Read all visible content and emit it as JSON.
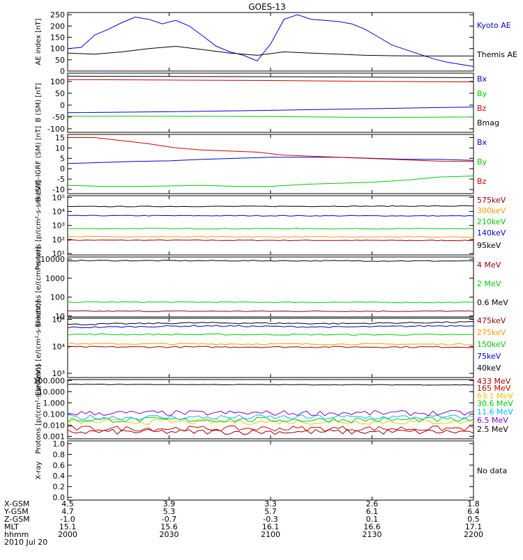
{
  "title": "GOES-13",
  "colors": {
    "black": "#000000",
    "blue": "#0000dd",
    "red": "#cc0000",
    "green": "#00cc00",
    "orange": "#ff9900",
    "yellow": "#e6c800",
    "cyan": "#00bbff",
    "purple": "#8800cc",
    "darkred": "#990000"
  },
  "chart_data": [
    {
      "type": "line",
      "panel": "ae-index",
      "ylabel": "AE index [nT]",
      "ytick_labels": [
        "0",
        "50",
        "100",
        "150",
        "200",
        "250"
      ],
      "ytick_values": [
        0,
        50,
        100,
        150,
        200,
        250
      ],
      "ylim": [
        0,
        260
      ],
      "log": false,
      "series": [
        {
          "name": "Kyoto AE",
          "color": "blue",
          "x": [
            0,
            2,
            4,
            6,
            8,
            10,
            12,
            14,
            16,
            18,
            20,
            22,
            24,
            26,
            28,
            30,
            32,
            34,
            36,
            38,
            40,
            42,
            44,
            46,
            48,
            50,
            52,
            54,
            56,
            58,
            60
          ],
          "y": [
            100,
            105,
            160,
            185,
            215,
            240,
            230,
            210,
            225,
            200,
            155,
            110,
            85,
            70,
            45,
            120,
            230,
            250,
            230,
            225,
            220,
            210,
            185,
            150,
            115,
            95,
            75,
            55,
            40,
            30,
            20
          ]
        },
        {
          "name": "Themis AE",
          "color": "black",
          "x": [
            0,
            4,
            8,
            12,
            16,
            20,
            24,
            28,
            32,
            36,
            40,
            44,
            48,
            52,
            56,
            60
          ],
          "y": [
            80,
            75,
            85,
            100,
            110,
            95,
            80,
            70,
            85,
            80,
            75,
            70,
            68,
            67,
            67,
            67
          ]
        }
      ]
    },
    {
      "type": "line",
      "panel": "b-sm",
      "ylabel": "B (SM) [nT]",
      "ytick_labels": [
        "-100",
        "-50",
        "0",
        "50",
        "100"
      ],
      "ytick_values": [
        -100,
        -50,
        0,
        50,
        100
      ],
      "ylim": [
        -115,
        135
      ],
      "log": false,
      "series": [
        {
          "name": "Bx",
          "color": "blue",
          "x": [
            0,
            15,
            30,
            45,
            60
          ],
          "y": [
            -32,
            -28,
            -22,
            -15,
            -8
          ]
        },
        {
          "name": "By",
          "color": "green",
          "x": [
            0,
            15,
            30,
            45,
            60
          ],
          "y": [
            -47,
            -47,
            -48,
            -52,
            -50
          ]
        },
        {
          "name": "Bz",
          "color": "red",
          "x": [
            0,
            15,
            30,
            45,
            60
          ],
          "y": [
            108,
            106,
            104,
            100,
            98
          ]
        },
        {
          "name": "Bmag",
          "color": "black",
          "x": [
            0,
            15,
            30,
            45,
            60
          ],
          "y": [
            122,
            121,
            120,
            118,
            116
          ]
        }
      ]
    },
    {
      "type": "line",
      "panel": "b-sm-igrf",
      "ylabel": "B (SM)-IGRF (SM) [nT]",
      "ytick_labels": [
        "-10",
        "-5",
        "0",
        "5",
        "10",
        "15"
      ],
      "ytick_values": [
        -10,
        -5,
        0,
        5,
        10,
        15
      ],
      "ylim": [
        -12,
        16.5
      ],
      "log": false,
      "series": [
        {
          "name": "Bx",
          "color": "blue",
          "x": [
            0,
            5,
            10,
            15,
            20,
            25,
            30,
            35,
            40,
            45,
            50,
            55,
            60
          ],
          "y": [
            2.5,
            3,
            3.5,
            3.8,
            4.5,
            5,
            5.5,
            5.5,
            5.5,
            5,
            4.5,
            4.5,
            4
          ]
        },
        {
          "name": "By",
          "color": "green",
          "x": [
            0,
            5,
            10,
            15,
            20,
            25,
            30,
            35,
            40,
            45,
            50,
            55,
            60
          ],
          "y": [
            -8,
            -8.5,
            -8.5,
            -8.3,
            -8,
            -8.5,
            -8.5,
            -7.5,
            -7,
            -6.5,
            -5.5,
            -4,
            -3.5
          ]
        },
        {
          "name": "Bz",
          "color": "red",
          "x": [
            0,
            4,
            8,
            12,
            16,
            20,
            24,
            28,
            32,
            36,
            40,
            44,
            48,
            52,
            56,
            60
          ],
          "y": [
            15,
            15,
            13.5,
            12,
            10,
            9,
            8.5,
            8,
            6.5,
            6,
            5.5,
            5,
            4.5,
            4,
            3.5,
            3.5
          ]
        }
      ]
    },
    {
      "type": "line",
      "panel": "protons-energetic",
      "ylabel": "Protons [p/(cm²-s-sr-keV)]",
      "ytick_labels": [
        "10¹",
        "10²",
        "10³",
        "10⁴",
        "10⁵"
      ],
      "ytick_values": [
        10,
        100,
        1000,
        10000,
        100000
      ],
      "ylim": [
        8,
        130000
      ],
      "log": true,
      "series": [
        {
          "name": "575keV",
          "color": "darkred",
          "x": [
            0,
            60
          ],
          "y": [
            90,
            85
          ]
        },
        {
          "name": "300keV",
          "color": "orange",
          "x": [
            0,
            60
          ],
          "y": [
            160,
            150
          ]
        },
        {
          "name": "210keV",
          "color": "green",
          "x": [
            0,
            60
          ],
          "y": [
            600,
            580
          ]
        },
        {
          "name": "140keV",
          "color": "blue",
          "x": [
            0,
            60
          ],
          "y": [
            5000,
            4800
          ]
        },
        {
          "name": "95keV",
          "color": "black",
          "x": [
            0,
            60
          ],
          "y": [
            22000,
            24000
          ]
        }
      ]
    },
    {
      "type": "line",
      "panel": "electrons-mev",
      "ylabel": "Electrons [e/(cm²-s-sr)]",
      "ytick_labels": [
        "10",
        "100",
        "1000",
        "10000"
      ],
      "ytick_values": [
        10,
        100,
        1000,
        10000
      ],
      "ylim": [
        9,
        13000
      ],
      "log": true,
      "series": [
        {
          "name": "4 MeV",
          "color": "darkred",
          "x": [
            0,
            60
          ],
          "y": [
            18,
            18
          ]
        },
        {
          "name": "2 MeV",
          "color": "green",
          "x": [
            0,
            60
          ],
          "y": [
            55,
            52
          ]
        },
        {
          "name": "0.6 MeV",
          "color": "black",
          "x": [
            0,
            60
          ],
          "y": [
            8500,
            8000
          ]
        }
      ]
    },
    {
      "type": "line",
      "panel": "electrons-kev",
      "ylabel": "Electrons [e/(cm²-s-sr-keV)]",
      "ytick_labels": [
        "10³",
        "10⁴",
        "10⁵"
      ],
      "ytick_values": [
        1000,
        10000,
        100000
      ],
      "ylim": [
        700,
        110000
      ],
      "log": true,
      "series": [
        {
          "name": "475keV",
          "color": "darkred",
          "x": [
            0,
            60
          ],
          "y": [
            9500,
            9500
          ]
        },
        {
          "name": "275keV",
          "color": "orange",
          "x": [
            0,
            60
          ],
          "y": [
            12500,
            12000
          ]
        },
        {
          "name": "150keV",
          "color": "green",
          "x": [
            0,
            60
          ],
          "y": [
            28000,
            27000
          ]
        },
        {
          "name": "75keV",
          "color": "blue",
          "x": [
            0,
            20,
            40,
            60
          ],
          "y": [
            50000,
            58000,
            52000,
            60000
          ]
        },
        {
          "name": "40keV",
          "color": "black",
          "x": [
            0,
            20,
            40,
            60
          ],
          "y": [
            65000,
            75000,
            70000,
            80000
          ]
        }
      ]
    },
    {
      "type": "line",
      "panel": "protons-mev",
      "ylabel": "Protons [p/(cm²-s-sr-keV)]",
      "ytick_labels": [
        "0.001",
        "0.010",
        "0.100",
        "1.000",
        "10.000",
        "100.000"
      ],
      "ytick_values": [
        0.001,
        0.01,
        0.1,
        1,
        10,
        100
      ],
      "ylim": [
        0.0006,
        120
      ],
      "log": true,
      "series": [
        {
          "name": "433 MeV",
          "color": "darkred",
          "x": [
            0,
            60
          ],
          "y": [
            0.0025,
            0.0025
          ]
        },
        {
          "name": "165 MeV",
          "color": "red",
          "x": [
            0,
            60
          ],
          "y": [
            0.005,
            0.005
          ]
        },
        {
          "name": "63.1 MeV",
          "color": "yellow",
          "x": [
            0,
            60
          ],
          "y": [
            0.02,
            0.02
          ]
        },
        {
          "name": "30.6 MeV",
          "color": "green",
          "x": [
            0,
            60
          ],
          "y": [
            0.03,
            0.03
          ]
        },
        {
          "name": "11.6 MeV",
          "color": "cyan",
          "x": [
            0,
            60
          ],
          "y": [
            0.05,
            0.05
          ]
        },
        {
          "name": "6.5 MeV",
          "color": "purple",
          "x": [
            0,
            60
          ],
          "y": [
            0.12,
            0.12
          ]
        },
        {
          "name": "2.5 MeV",
          "color": "black",
          "x": [
            0,
            60
          ],
          "y": [
            45,
            40
          ]
        }
      ]
    },
    {
      "type": "line",
      "panel": "x-ray",
      "ylabel": "X-ray",
      "ytick_labels": [
        "0.0",
        "0.2",
        "0.4",
        "0.6",
        "0.8",
        "1.0"
      ],
      "ytick_values": [
        0,
        0.2,
        0.4,
        0.6,
        0.8,
        1.0
      ],
      "ylim": [
        -0.05,
        1.05
      ],
      "log": false,
      "annotation": "No data",
      "series": []
    }
  ],
  "time_axis": {
    "xlim": [
      0,
      60
    ],
    "tick_x": [
      0,
      15,
      30,
      45,
      60
    ],
    "rows": [
      {
        "label": "X-GSM",
        "values": [
          "4.5",
          "3.9",
          "3.3",
          "2.6",
          "1.8"
        ]
      },
      {
        "label": "Y-GSM",
        "values": [
          "4.7",
          "5.3",
          "5.7",
          "6.1",
          "6.4"
        ]
      },
      {
        "label": "Z-GSM",
        "values": [
          "-1.0",
          "-0.7",
          "-0.3",
          "0.1",
          "0.5"
        ]
      },
      {
        "label": "MLT",
        "values": [
          "15.1",
          "15.6",
          "16.1",
          "16.6",
          "17.1"
        ]
      },
      {
        "label": "hhmm",
        "values": [
          "2000",
          "2030",
          "2100",
          "2130",
          "2200"
        ]
      }
    ],
    "date": "2010 Jul 20"
  }
}
